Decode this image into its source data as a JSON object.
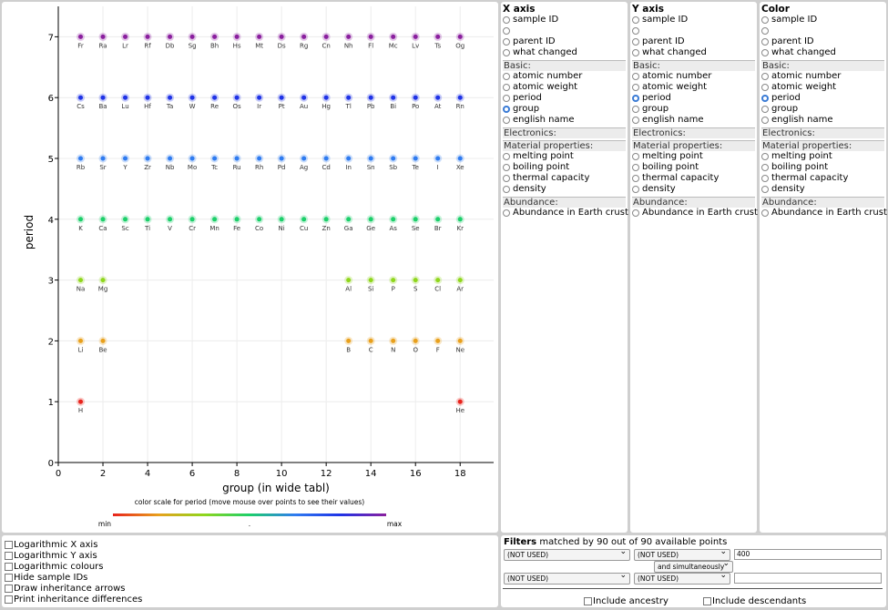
{
  "chart_data": {
    "type": "scatter",
    "xlabel": "group (in wide tabl)",
    "ylabel": "period",
    "xlim": [
      0,
      19.5
    ],
    "ylim": [
      0,
      7.5
    ],
    "xticks": [
      "0",
      "2",
      "4",
      "6",
      "8",
      "10",
      "12",
      "14",
      "16",
      "18"
    ],
    "yticks": [
      "0",
      "1",
      "2",
      "3",
      "4",
      "5",
      "6",
      "7"
    ],
    "grid": true,
    "points": [
      {
        "label": "H",
        "x": 1,
        "y": 1
      },
      {
        "label": "He",
        "x": 18,
        "y": 1
      },
      {
        "label": "Li",
        "x": 1,
        "y": 2
      },
      {
        "label": "Be",
        "x": 2,
        "y": 2
      },
      {
        "label": "B",
        "x": 13,
        "y": 2
      },
      {
        "label": "C",
        "x": 14,
        "y": 2
      },
      {
        "label": "N",
        "x": 15,
        "y": 2
      },
      {
        "label": "O",
        "x": 16,
        "y": 2
      },
      {
        "label": "F",
        "x": 17,
        "y": 2
      },
      {
        "label": "Ne",
        "x": 18,
        "y": 2
      },
      {
        "label": "Na",
        "x": 1,
        "y": 3
      },
      {
        "label": "Mg",
        "x": 2,
        "y": 3
      },
      {
        "label": "Al",
        "x": 13,
        "y": 3
      },
      {
        "label": "Si",
        "x": 14,
        "y": 3
      },
      {
        "label": "P",
        "x": 15,
        "y": 3
      },
      {
        "label": "S",
        "x": 16,
        "y": 3
      },
      {
        "label": "Cl",
        "x": 17,
        "y": 3
      },
      {
        "label": "Ar",
        "x": 18,
        "y": 3
      },
      {
        "label": "K",
        "x": 1,
        "y": 4
      },
      {
        "label": "Ca",
        "x": 2,
        "y": 4
      },
      {
        "label": "Sc",
        "x": 3,
        "y": 4
      },
      {
        "label": "Ti",
        "x": 4,
        "y": 4
      },
      {
        "label": "V",
        "x": 5,
        "y": 4
      },
      {
        "label": "Cr",
        "x": 6,
        "y": 4
      },
      {
        "label": "Mn",
        "x": 7,
        "y": 4
      },
      {
        "label": "Fe",
        "x": 8,
        "y": 4
      },
      {
        "label": "Co",
        "x": 9,
        "y": 4
      },
      {
        "label": "Ni",
        "x": 10,
        "y": 4
      },
      {
        "label": "Cu",
        "x": 11,
        "y": 4
      },
      {
        "label": "Zn",
        "x": 12,
        "y": 4
      },
      {
        "label": "Ga",
        "x": 13,
        "y": 4
      },
      {
        "label": "Ge",
        "x": 14,
        "y": 4
      },
      {
        "label": "As",
        "x": 15,
        "y": 4
      },
      {
        "label": "Se",
        "x": 16,
        "y": 4
      },
      {
        "label": "Br",
        "x": 17,
        "y": 4
      },
      {
        "label": "Kr",
        "x": 18,
        "y": 4
      },
      {
        "label": "Rb",
        "x": 1,
        "y": 5
      },
      {
        "label": "Sr",
        "x": 2,
        "y": 5
      },
      {
        "label": "Y",
        "x": 3,
        "y": 5
      },
      {
        "label": "Zr",
        "x": 4,
        "y": 5
      },
      {
        "label": "Nb",
        "x": 5,
        "y": 5
      },
      {
        "label": "Mo",
        "x": 6,
        "y": 5
      },
      {
        "label": "Tc",
        "x": 7,
        "y": 5
      },
      {
        "label": "Ru",
        "x": 8,
        "y": 5
      },
      {
        "label": "Rh",
        "x": 9,
        "y": 5
      },
      {
        "label": "Pd",
        "x": 10,
        "y": 5
      },
      {
        "label": "Ag",
        "x": 11,
        "y": 5
      },
      {
        "label": "Cd",
        "x": 12,
        "y": 5
      },
      {
        "label": "In",
        "x": 13,
        "y": 5
      },
      {
        "label": "Sn",
        "x": 14,
        "y": 5
      },
      {
        "label": "Sb",
        "x": 15,
        "y": 5
      },
      {
        "label": "Te",
        "x": 16,
        "y": 5
      },
      {
        "label": "I",
        "x": 17,
        "y": 5
      },
      {
        "label": "Xe",
        "x": 18,
        "y": 5
      },
      {
        "label": "Cs",
        "x": 1,
        "y": 6
      },
      {
        "label": "Ba",
        "x": 2,
        "y": 6
      },
      {
        "label": "Lu",
        "x": 3,
        "y": 6
      },
      {
        "label": "Hf",
        "x": 4,
        "y": 6
      },
      {
        "label": "Ta",
        "x": 5,
        "y": 6
      },
      {
        "label": "W",
        "x": 6,
        "y": 6
      },
      {
        "label": "Re",
        "x": 7,
        "y": 6
      },
      {
        "label": "Os",
        "x": 8,
        "y": 6
      },
      {
        "label": "Ir",
        "x": 9,
        "y": 6
      },
      {
        "label": "Pt",
        "x": 10,
        "y": 6
      },
      {
        "label": "Au",
        "x": 11,
        "y": 6
      },
      {
        "label": "Hg",
        "x": 12,
        "y": 6
      },
      {
        "label": "Tl",
        "x": 13,
        "y": 6
      },
      {
        "label": "Pb",
        "x": 14,
        "y": 6
      },
      {
        "label": "Bi",
        "x": 15,
        "y": 6
      },
      {
        "label": "Po",
        "x": 16,
        "y": 6
      },
      {
        "label": "At",
        "x": 17,
        "y": 6
      },
      {
        "label": "Rn",
        "x": 18,
        "y": 6
      },
      {
        "label": "Fr",
        "x": 1,
        "y": 7
      },
      {
        "label": "Ra",
        "x": 2,
        "y": 7
      },
      {
        "label": "Lr",
        "x": 3,
        "y": 7
      },
      {
        "label": "Rf",
        "x": 4,
        "y": 7
      },
      {
        "label": "Db",
        "x": 5,
        "y": 7
      },
      {
        "label": "Sg",
        "x": 6,
        "y": 7
      },
      {
        "label": "Bh",
        "x": 7,
        "y": 7
      },
      {
        "label": "Hs",
        "x": 8,
        "y": 7
      },
      {
        "label": "Mt",
        "x": 9,
        "y": 7
      },
      {
        "label": "Ds",
        "x": 10,
        "y": 7
      },
      {
        "label": "Rg",
        "x": 11,
        "y": 7
      },
      {
        "label": "Cn",
        "x": 12,
        "y": 7
      },
      {
        "label": "Nh",
        "x": 13,
        "y": 7
      },
      {
        "label": "Fl",
        "x": 14,
        "y": 7
      },
      {
        "label": "Mc",
        "x": 15,
        "y": 7
      },
      {
        "label": "Lv",
        "x": 16,
        "y": 7
      },
      {
        "label": "Ts",
        "x": 17,
        "y": 7
      },
      {
        "label": "Og",
        "x": 18,
        "y": 7
      }
    ],
    "period_colors": {
      "1": "#e8231c",
      "2": "#e8a01c",
      "3": "#8fd61c",
      "4": "#1ccf6a",
      "5": "#2f7bf0",
      "6": "#1f33e6",
      "7": "#8a1f9e"
    },
    "color_scale": {
      "caption": "color scale for period (move mouse over points to see their values)",
      "min_label": "min",
      "mid_label": ".",
      "max_label": "max"
    }
  },
  "axis_panels": [
    {
      "id": "x",
      "title": "X axis",
      "selected": "group"
    },
    {
      "id": "y",
      "title": "Y axis",
      "selected": "period"
    },
    {
      "id": "c",
      "title": "Color",
      "selected": "period"
    }
  ],
  "axis_options": {
    "top": [
      "sample ID",
      "",
      "parent ID",
      "what changed"
    ],
    "groups": [
      {
        "name": "Basic:",
        "items": [
          "atomic number",
          "atomic weight",
          "period",
          "group",
          "english name"
        ]
      },
      {
        "name": "Electronics:",
        "items": []
      },
      {
        "name": "Material properties:",
        "items": [
          "melting point",
          "boiling point",
          "thermal capacity",
          "density"
        ]
      },
      {
        "name": "Abundance:",
        "items": [
          "Abundance in Earth crust"
        ]
      }
    ]
  },
  "options": [
    "Logarithmic X axis",
    "Logarithmic Y axis",
    "Logarithmic colours",
    "Hide sample IDs",
    "Draw inheritance arrows",
    "Print inheritance differences"
  ],
  "filters": {
    "title": "Filters",
    "summary": "matched by 90 out of 90 available points",
    "row1": {
      "field": "(NOT USED)",
      "op": "(NOT USED)",
      "value": "400"
    },
    "combinator": "and simultaneously",
    "row2": {
      "field": "(NOT USED)",
      "op": "(NOT USED)",
      "value": ""
    },
    "include_ancestry": "Include ancestry",
    "include_descendants": "Include descendants"
  }
}
